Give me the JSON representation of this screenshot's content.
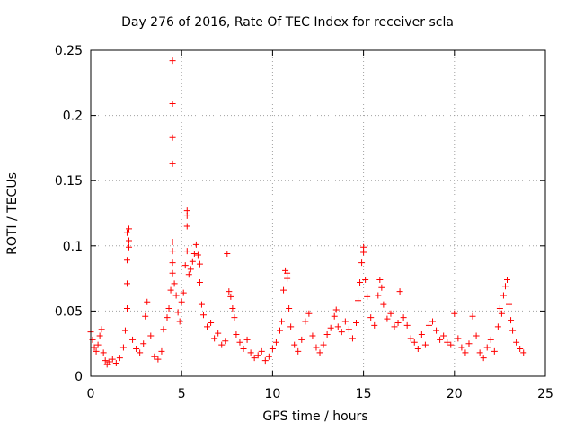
{
  "chart_data": {
    "type": "scatter",
    "title": "Day 276 of 2016, Rate Of TEC Index for receiver scla",
    "xlabel": "GPS time / hours",
    "ylabel": "ROTI / TECUs",
    "xlim": [
      0,
      25
    ],
    "ylim": [
      0,
      0.25
    ],
    "xticks": [
      0,
      5,
      10,
      15,
      20,
      25
    ],
    "xtick_labels": [
      "0",
      "5",
      "10",
      "15",
      "20",
      "25"
    ],
    "yticks": [
      0,
      0.05,
      0.1,
      0.15,
      0.2,
      0.25
    ],
    "ytick_labels": [
      "0",
      "0.05",
      "0.1",
      "0.15",
      "0.2",
      "0.25"
    ],
    "grid": true,
    "marker": "+",
    "color": "#ff0000",
    "series": [
      {
        "name": "ROTI",
        "points": [
          [
            0.0,
            0.034
          ],
          [
            0.1,
            0.028
          ],
          [
            0.2,
            0.022
          ],
          [
            0.3,
            0.019
          ],
          [
            0.4,
            0.024
          ],
          [
            0.5,
            0.031
          ],
          [
            0.6,
            0.036
          ],
          [
            0.7,
            0.018
          ],
          [
            0.8,
            0.012
          ],
          [
            0.9,
            0.009
          ],
          [
            1.0,
            0.011
          ],
          [
            1.2,
            0.013
          ],
          [
            1.4,
            0.01
          ],
          [
            1.6,
            0.014
          ],
          [
            1.8,
            0.022
          ],
          [
            1.9,
            0.035
          ],
          [
            2.0,
            0.052
          ],
          [
            2.0,
            0.071
          ],
          [
            2.0,
            0.089
          ],
          [
            2.0,
            0.11
          ],
          [
            2.1,
            0.113
          ],
          [
            2.1,
            0.104
          ],
          [
            2.1,
            0.099
          ],
          [
            2.3,
            0.028
          ],
          [
            2.5,
            0.021
          ],
          [
            2.7,
            0.018
          ],
          [
            2.9,
            0.025
          ],
          [
            3.0,
            0.046
          ],
          [
            3.1,
            0.057
          ],
          [
            3.3,
            0.031
          ],
          [
            3.5,
            0.015
          ],
          [
            3.7,
            0.013
          ],
          [
            3.9,
            0.019
          ],
          [
            4.0,
            0.036
          ],
          [
            4.2,
            0.045
          ],
          [
            4.3,
            0.052
          ],
          [
            4.4,
            0.066
          ],
          [
            4.5,
            0.079
          ],
          [
            4.5,
            0.087
          ],
          [
            4.5,
            0.096
          ],
          [
            4.5,
            0.103
          ],
          [
            4.5,
            0.163
          ],
          [
            4.5,
            0.183
          ],
          [
            4.5,
            0.209
          ],
          [
            4.5,
            0.242
          ],
          [
            4.6,
            0.071
          ],
          [
            4.7,
            0.062
          ],
          [
            4.8,
            0.049
          ],
          [
            4.9,
            0.042
          ],
          [
            5.0,
            0.057
          ],
          [
            5.1,
            0.064
          ],
          [
            5.2,
            0.085
          ],
          [
            5.3,
            0.096
          ],
          [
            5.3,
            0.115
          ],
          [
            5.3,
            0.123
          ],
          [
            5.3,
            0.127
          ],
          [
            5.4,
            0.078
          ],
          [
            5.5,
            0.082
          ],
          [
            5.6,
            0.088
          ],
          [
            5.7,
            0.094
          ],
          [
            5.8,
            0.101
          ],
          [
            5.9,
            0.093
          ],
          [
            6.0,
            0.086
          ],
          [
            6.0,
            0.072
          ],
          [
            6.1,
            0.055
          ],
          [
            6.2,
            0.047
          ],
          [
            6.4,
            0.038
          ],
          [
            6.6,
            0.041
          ],
          [
            6.8,
            0.029
          ],
          [
            7.0,
            0.033
          ],
          [
            7.2,
            0.024
          ],
          [
            7.4,
            0.027
          ],
          [
            7.5,
            0.094
          ],
          [
            7.6,
            0.065
          ],
          [
            7.7,
            0.061
          ],
          [
            7.8,
            0.052
          ],
          [
            7.9,
            0.045
          ],
          [
            8.0,
            0.032
          ],
          [
            8.2,
            0.026
          ],
          [
            8.4,
            0.021
          ],
          [
            8.6,
            0.028
          ],
          [
            8.8,
            0.018
          ],
          [
            9.0,
            0.014
          ],
          [
            9.2,
            0.016
          ],
          [
            9.4,
            0.019
          ],
          [
            9.6,
            0.012
          ],
          [
            9.8,
            0.015
          ],
          [
            10.0,
            0.021
          ],
          [
            10.2,
            0.026
          ],
          [
            10.4,
            0.035
          ],
          [
            10.5,
            0.042
          ],
          [
            10.6,
            0.066
          ],
          [
            10.7,
            0.081
          ],
          [
            10.8,
            0.079
          ],
          [
            10.8,
            0.075
          ],
          [
            10.9,
            0.052
          ],
          [
            11.0,
            0.038
          ],
          [
            11.2,
            0.024
          ],
          [
            11.4,
            0.019
          ],
          [
            11.6,
            0.028
          ],
          [
            11.8,
            0.042
          ],
          [
            12.0,
            0.048
          ],
          [
            12.2,
            0.031
          ],
          [
            12.4,
            0.022
          ],
          [
            12.6,
            0.018
          ],
          [
            12.8,
            0.024
          ],
          [
            13.0,
            0.032
          ],
          [
            13.2,
            0.037
          ],
          [
            13.4,
            0.046
          ],
          [
            13.5,
            0.051
          ],
          [
            13.6,
            0.038
          ],
          [
            13.8,
            0.034
          ],
          [
            14.0,
            0.042
          ],
          [
            14.2,
            0.036
          ],
          [
            14.4,
            0.029
          ],
          [
            14.6,
            0.041
          ],
          [
            14.7,
            0.058
          ],
          [
            14.8,
            0.072
          ],
          [
            14.9,
            0.087
          ],
          [
            15.0,
            0.095
          ],
          [
            15.0,
            0.099
          ],
          [
            15.1,
            0.074
          ],
          [
            15.2,
            0.061
          ],
          [
            15.4,
            0.045
          ],
          [
            15.6,
            0.039
          ],
          [
            15.8,
            0.062
          ],
          [
            15.9,
            0.074
          ],
          [
            16.0,
            0.068
          ],
          [
            16.1,
            0.055
          ],
          [
            16.3,
            0.044
          ],
          [
            16.5,
            0.048
          ],
          [
            16.7,
            0.038
          ],
          [
            16.9,
            0.041
          ],
          [
            17.0,
            0.065
          ],
          [
            17.2,
            0.045
          ],
          [
            17.4,
            0.039
          ],
          [
            17.6,
            0.029
          ],
          [
            17.8,
            0.026
          ],
          [
            18.0,
            0.021
          ],
          [
            18.2,
            0.032
          ],
          [
            18.4,
            0.024
          ],
          [
            18.6,
            0.039
          ],
          [
            18.8,
            0.042
          ],
          [
            19.0,
            0.035
          ],
          [
            19.2,
            0.028
          ],
          [
            19.4,
            0.031
          ],
          [
            19.6,
            0.026
          ],
          [
            19.8,
            0.024
          ],
          [
            20.0,
            0.048
          ],
          [
            20.2,
            0.029
          ],
          [
            20.4,
            0.022
          ],
          [
            20.6,
            0.018
          ],
          [
            20.8,
            0.025
          ],
          [
            21.0,
            0.046
          ],
          [
            21.2,
            0.031
          ],
          [
            21.4,
            0.018
          ],
          [
            21.6,
            0.014
          ],
          [
            21.8,
            0.022
          ],
          [
            22.0,
            0.028
          ],
          [
            22.2,
            0.019
          ],
          [
            22.4,
            0.038
          ],
          [
            22.5,
            0.052
          ],
          [
            22.6,
            0.048
          ],
          [
            22.7,
            0.062
          ],
          [
            22.8,
            0.069
          ],
          [
            22.9,
            0.074
          ],
          [
            23.0,
            0.055
          ],
          [
            23.1,
            0.043
          ],
          [
            23.2,
            0.035
          ],
          [
            23.4,
            0.026
          ],
          [
            23.6,
            0.021
          ],
          [
            23.8,
            0.018
          ]
        ]
      }
    ]
  }
}
